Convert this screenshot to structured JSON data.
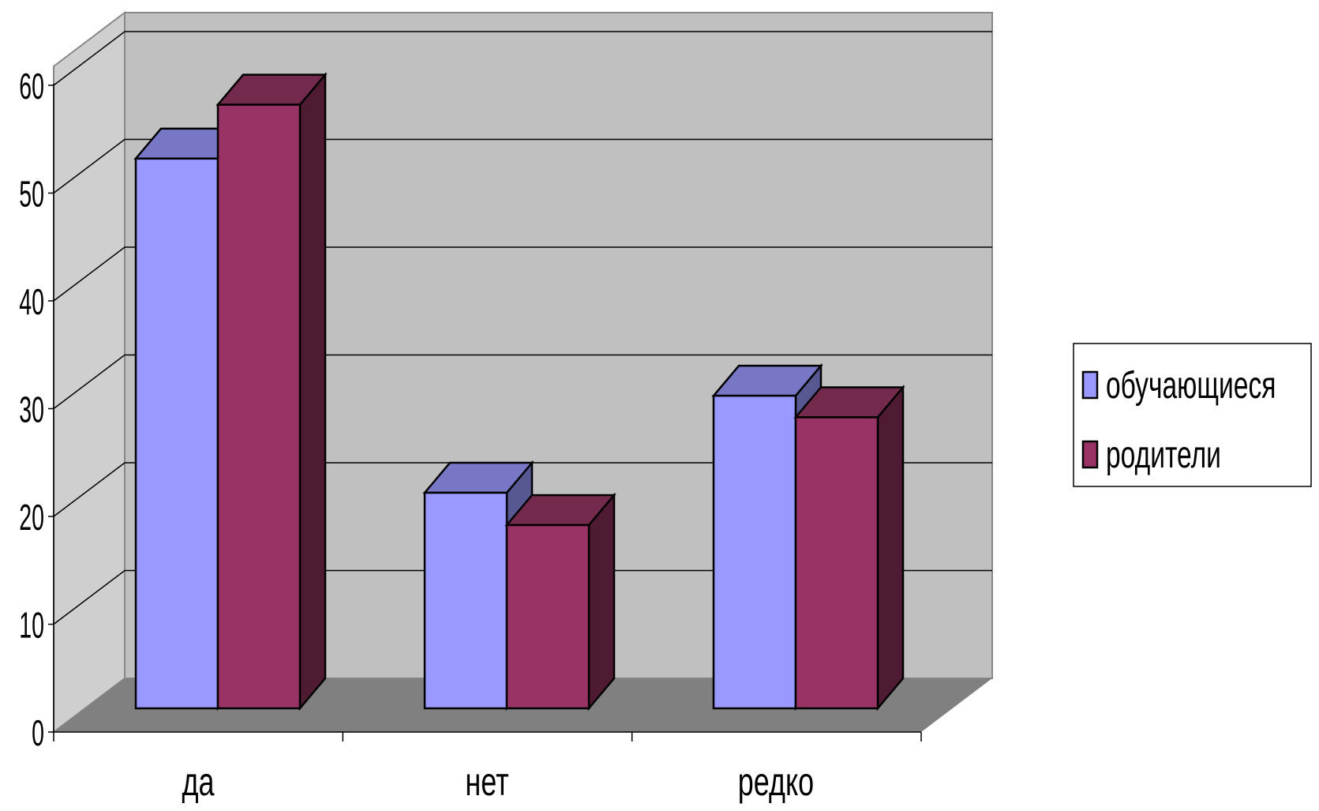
{
  "chart_data": {
    "type": "bar",
    "style": "3d-clustered-column",
    "categories": [
      "да",
      "нет",
      "редко"
    ],
    "series": [
      {
        "name": "обучающиеся",
        "values": [
          51,
          20,
          29
        ],
        "color": "#9999ff",
        "top_color": "#7777c6",
        "side_color": "#575791"
      },
      {
        "name": "родители",
        "values": [
          56,
          17,
          27
        ],
        "color": "#993366",
        "top_color": "#732a4c",
        "side_color": "#4e1b33"
      }
    ],
    "ylim": [
      0,
      60
    ],
    "yticks": [
      "0",
      "10",
      "20",
      "30",
      "40",
      "50",
      "60"
    ],
    "grid": true,
    "legend_position": "right",
    "colors": {
      "wall": "#c0c0c0",
      "side_wall": "#cfcfcf",
      "floor": "#808080",
      "gridline": "#000000"
    }
  }
}
